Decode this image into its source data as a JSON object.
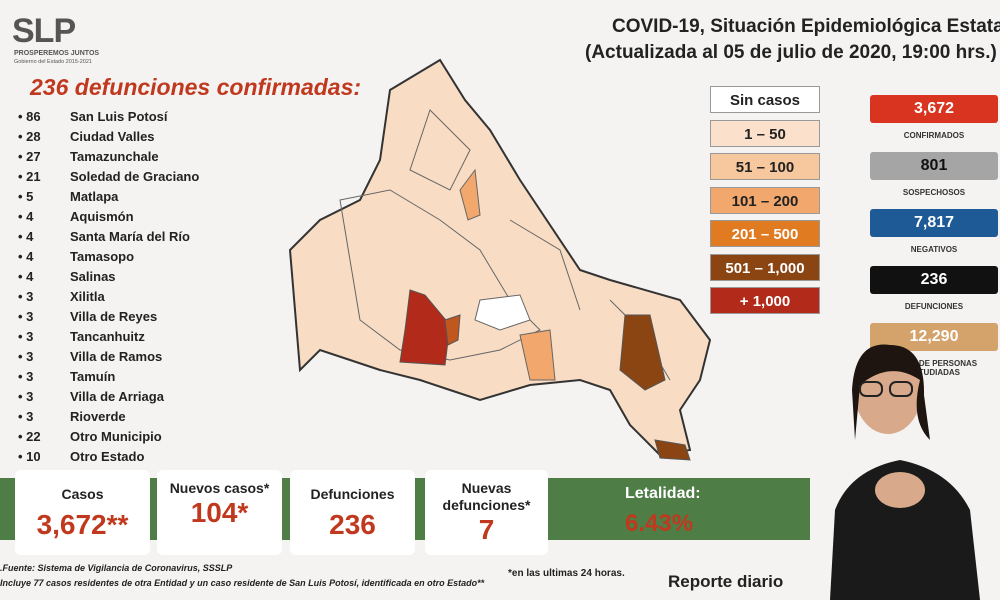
{
  "header": {
    "logo": "SLP",
    "logo_sub": "PROSPEREMOS JUNTOS",
    "logo_sub2": "Gobierno del Estado 2015-2021",
    "title_line1": "COVID-19, Situación Epidemiológica Estatal",
    "title_line2": "(Actualizada al 05 de julio de 2020, 19:00 hrs.)"
  },
  "deaths": {
    "heading": "236 defunciones confirmadas:",
    "rows": [
      [
        "86",
        "San Luis Potosí"
      ],
      [
        "28",
        "Ciudad Valles"
      ],
      [
        "27",
        "Tamazunchale"
      ],
      [
        "21",
        "Soledad de Graciano"
      ],
      [
        "5",
        "Matlapa"
      ],
      [
        "4",
        "Aquismón"
      ],
      [
        "4",
        "Santa María del Río"
      ],
      [
        "4",
        "Tamasopo"
      ],
      [
        "4",
        "Salinas"
      ],
      [
        "3",
        "Xilitla"
      ],
      [
        "3",
        "Villa de Reyes"
      ],
      [
        "3",
        "Tancanhuitz"
      ],
      [
        "3",
        "Villa de Ramos"
      ],
      [
        "3",
        "Tamuín"
      ],
      [
        "3",
        "Villa de Arriaga"
      ],
      [
        "3",
        "Rioverde"
      ],
      [
        "22",
        "Otro Municipio"
      ],
      [
        "10",
        "Otro Estado"
      ]
    ]
  },
  "legend": [
    "Sin casos",
    "1 – 50",
    "51 – 100",
    "101 – 200",
    "201 – 500",
    "501 – 1,000",
    "+ 1,000"
  ],
  "stats": [
    {
      "value": "3,672",
      "label": "CONFIRMADOS"
    },
    {
      "value": "801",
      "label": "SOSPECHOSOS"
    },
    {
      "value": "7,817",
      "label": "NEGATIVOS"
    },
    {
      "value": "236",
      "label": "DEFUNCIONES"
    },
    {
      "value": "12,290",
      "label": "TOTAL DE PERSONAS ESTUDIADAS"
    }
  ],
  "summary": [
    {
      "label": "Casos",
      "value": "3,672**"
    },
    {
      "label": "Nuevos casos*",
      "value": "104*"
    },
    {
      "label": "Defunciones",
      "value": "236"
    },
    {
      "label": "Nuevas defunciones*",
      "value": "7"
    },
    {
      "label": "Letalidad:",
      "value": "6.43%"
    }
  ],
  "footer": {
    "source": "Fuente: Sistema de Vigilancia de Coronavirus, SSSLP.",
    "note": "**Incluye 77 casos residentes de otra Entidad y un caso residente de San Luis Potosí, identificada en otro Estado",
    "note24": "*en las ultimas 24 horas.",
    "report": "Reporte diario"
  }
}
